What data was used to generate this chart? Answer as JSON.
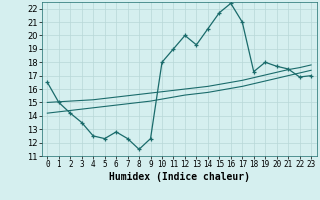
{
  "title": "",
  "xlabel": "Humidex (Indice chaleur)",
  "xlim": [
    -0.5,
    23.5
  ],
  "ylim": [
    11,
    22.5
  ],
  "xticks": [
    0,
    1,
    2,
    3,
    4,
    5,
    6,
    7,
    8,
    9,
    10,
    11,
    12,
    13,
    14,
    15,
    16,
    17,
    18,
    19,
    20,
    21,
    22,
    23
  ],
  "yticks": [
    11,
    12,
    13,
    14,
    15,
    16,
    17,
    18,
    19,
    20,
    21,
    22
  ],
  "bg_color": "#d5efef",
  "grid_color": "#b8d8d8",
  "line_color": "#1a6b6b",
  "line1_x": [
    0,
    1,
    2,
    3,
    4,
    5,
    6,
    7,
    8,
    9,
    10,
    11,
    12,
    13,
    14,
    15,
    16,
    17,
    18,
    19,
    20,
    21,
    22,
    23
  ],
  "line1_y": [
    16.5,
    15.0,
    14.2,
    13.5,
    12.5,
    12.3,
    12.8,
    12.3,
    11.5,
    12.3,
    18.0,
    19.0,
    20.0,
    19.3,
    20.5,
    21.7,
    22.4,
    21.0,
    17.3,
    18.0,
    17.7,
    17.5,
    16.9,
    17.0
  ],
  "line2_x": [
    0,
    1,
    2,
    3,
    4,
    5,
    6,
    7,
    8,
    9,
    10,
    11,
    12,
    13,
    14,
    15,
    16,
    17,
    18,
    19,
    20,
    21,
    22,
    23
  ],
  "line2_y": [
    15.0,
    15.05,
    15.1,
    15.15,
    15.2,
    15.3,
    15.4,
    15.5,
    15.6,
    15.7,
    15.8,
    15.9,
    16.0,
    16.1,
    16.2,
    16.35,
    16.5,
    16.65,
    16.85,
    17.05,
    17.25,
    17.45,
    17.6,
    17.8
  ],
  "line3_x": [
    0,
    1,
    2,
    3,
    4,
    5,
    6,
    7,
    8,
    9,
    10,
    11,
    12,
    13,
    14,
    15,
    16,
    17,
    18,
    19,
    20,
    21,
    22,
    23
  ],
  "line3_y": [
    14.2,
    14.3,
    14.4,
    14.5,
    14.6,
    14.7,
    14.8,
    14.9,
    15.0,
    15.1,
    15.25,
    15.4,
    15.55,
    15.65,
    15.75,
    15.9,
    16.05,
    16.2,
    16.4,
    16.6,
    16.8,
    17.0,
    17.2,
    17.4
  ],
  "tick_fontsize": 5.5,
  "xlabel_fontsize": 7
}
